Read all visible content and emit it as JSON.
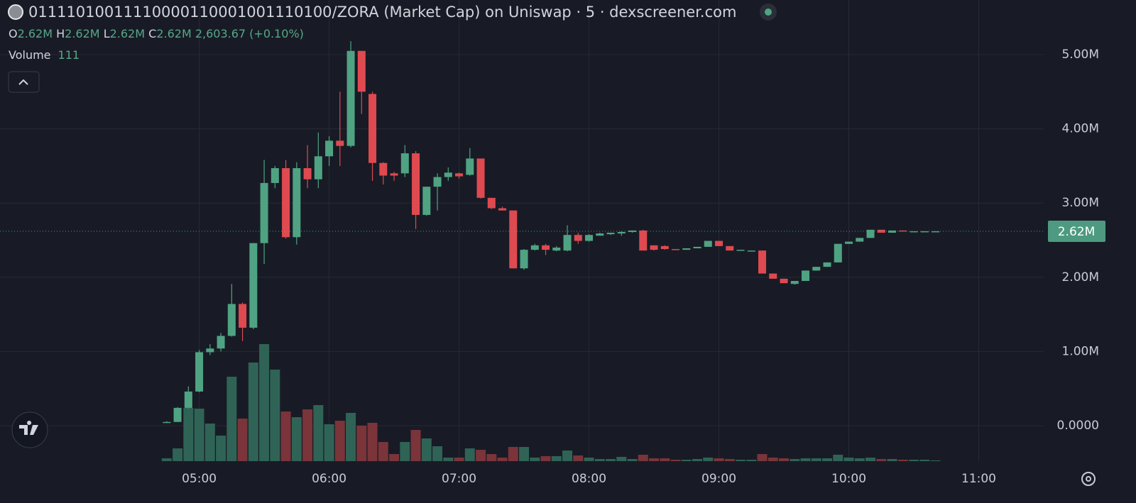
{
  "chart_data": {
    "type": "candlestick",
    "title": "01111010011110000110001001110100/ZORA (Market Cap) on Uniswap · 5 · dexscreener.com",
    "legend": {
      "open_key": "O",
      "open": "2.62M",
      "high_key": "H",
      "high": "2.62M",
      "low_key": "L",
      "low": "2.62M",
      "close_key": "C",
      "close": "2.62M",
      "change": "2,603.67 (+0.10%)"
    },
    "volume_label": "Volume",
    "x": [
      "04:45",
      "04:50",
      "04:55",
      "05:00",
      "05:05",
      "05:10",
      "05:15",
      "05:20",
      "05:25",
      "05:30",
      "05:35",
      "05:40",
      "05:45",
      "05:50",
      "05:55",
      "06:00",
      "06:05",
      "06:10",
      "06:15",
      "06:20",
      "06:25",
      "06:30",
      "06:35",
      "06:40",
      "06:45",
      "06:50",
      "06:55",
      "07:00",
      "07:05",
      "07:10",
      "07:15",
      "07:20",
      "07:25",
      "07:30",
      "07:35",
      "07:40",
      "07:45",
      "07:50",
      "07:55",
      "08:00",
      "08:05",
      "08:10",
      "08:15",
      "08:20",
      "08:25",
      "08:30",
      "08:35",
      "08:40",
      "08:45",
      "08:50",
      "08:55",
      "09:00",
      "09:05",
      "09:10",
      "09:15",
      "09:20",
      "09:25",
      "09:30",
      "09:35",
      "09:40",
      "09:45",
      "09:50",
      "09:55",
      "10:00",
      "10:05",
      "10:10",
      "10:15",
      "10:20",
      "10:25",
      "10:30",
      "10:35",
      "10:40"
    ],
    "open": [
      50000,
      50000,
      240000,
      460000,
      990000,
      1040000,
      1210000,
      1640000,
      1320000,
      2460000,
      3270000,
      3470000,
      2540000,
      3470000,
      3320000,
      3630000,
      3840000,
      3770000,
      5050000,
      4470000,
      3540000,
      3400000,
      3400000,
      3670000,
      2840000,
      3220000,
      3350000,
      3400000,
      3380000,
      3600000,
      3070000,
      2930000,
      2900000,
      2120000,
      2370000,
      2430000,
      2360000,
      2360000,
      2570000,
      2490000,
      2560000,
      2580000,
      2590000,
      2610000,
      2630000,
      2430000,
      2420000,
      2380000,
      2370000,
      2390000,
      2410000,
      2490000,
      2420000,
      2370000,
      2360000,
      2360000,
      2050000,
      1980000,
      1910000,
      1950000,
      2090000,
      2140000,
      2200000,
      2450000,
      2480000,
      2530000,
      2640000,
      2600000,
      2630000,
      2620000,
      2620000,
      2620000
    ],
    "high": [
      60000,
      250000,
      530000,
      1020000,
      1100000,
      1250000,
      1910000,
      1660000,
      2460000,
      3580000,
      3500000,
      3580000,
      3550000,
      3780000,
      3950000,
      3900000,
      4500000,
      5180000,
      5050000,
      4500000,
      3550000,
      3420000,
      3780000,
      3700000,
      3220000,
      3400000,
      3480000,
      3410000,
      3740000,
      3600000,
      3070000,
      2950000,
      2900000,
      2380000,
      2450000,
      2450000,
      2420000,
      2700000,
      2600000,
      2580000,
      2600000,
      2600000,
      2620000,
      2630000,
      2640000,
      2430000,
      2430000,
      2380000,
      2390000,
      2410000,
      2490000,
      2490000,
      2420000,
      2370000,
      2360000,
      2360000,
      2050000,
      1980000,
      1950000,
      2090000,
      2140000,
      2200000,
      2450000,
      2480000,
      2530000,
      2640000,
      2640000,
      2630000,
      2630000,
      2620000,
      2620000,
      2620000
    ],
    "low": [
      40000,
      50000,
      230000,
      450000,
      950000,
      1000000,
      1200000,
      1140000,
      1300000,
      2180000,
      3200000,
      2520000,
      2440000,
      3200000,
      3200000,
      3500000,
      3500000,
      3750000,
      4200000,
      3300000,
      3250000,
      3300000,
      3350000,
      2650000,
      2830000,
      2900000,
      3300000,
      3330000,
      3370000,
      3060000,
      2920000,
      2900000,
      2120000,
      2100000,
      2360000,
      2300000,
      2350000,
      2350000,
      2450000,
      2480000,
      2560000,
      2570000,
      2560000,
      2600000,
      2360000,
      2360000,
      2370000,
      2370000,
      2370000,
      2390000,
      2410000,
      2420000,
      2360000,
      2360000,
      2350000,
      2050000,
      1980000,
      1920000,
      1900000,
      1950000,
      2090000,
      2140000,
      2200000,
      2450000,
      2480000,
      2530000,
      2600000,
      2600000,
      2620000,
      2620000,
      2620000,
      2620000
    ],
    "close": [
      50000,
      240000,
      460000,
      990000,
      1040000,
      1210000,
      1640000,
      1320000,
      2460000,
      3270000,
      3470000,
      2540000,
      3470000,
      3320000,
      3630000,
      3840000,
      3770000,
      5050000,
      4500000,
      3540000,
      3370000,
      3370000,
      3670000,
      2840000,
      3220000,
      3350000,
      3410000,
      3360000,
      3600000,
      3070000,
      2930000,
      2900000,
      2120000,
      2370000,
      2430000,
      2370000,
      2400000,
      2570000,
      2490000,
      2570000,
      2590000,
      2600000,
      2610000,
      2630000,
      2360000,
      2370000,
      2380000,
      2370000,
      2390000,
      2410000,
      2490000,
      2420000,
      2360000,
      2370000,
      2360000,
      2050000,
      1980000,
      1920000,
      1950000,
      2090000,
      2140000,
      2200000,
      2450000,
      2480000,
      2530000,
      2640000,
      2600000,
      2630000,
      2620000,
      2620000,
      2620000,
      2620000
    ],
    "volume": [
      440,
      1980,
      8250,
      8140,
      5830,
      3960,
      13090,
      6600,
      15290,
      18150,
      14190,
      7700,
      6820,
      8030,
      8690,
      5720,
      6270,
      7480,
      5500,
      5940,
      2970,
      1100,
      2970,
      4840,
      3520,
      2310,
      550,
      550,
      1980,
      1760,
      1100,
      550,
      2200,
      2200,
      550,
      770,
      770,
      1650,
      880,
      550,
      330,
      330,
      660,
      330,
      990,
      440,
      440,
      220,
      220,
      330,
      550,
      440,
      330,
      220,
      220,
      1100,
      550,
      440,
      330,
      440,
      440,
      440,
      990,
      550,
      440,
      550,
      330,
      330,
      220,
      220,
      220,
      111
    ],
    "up_color": "#4fa383",
    "down_color": "#de4a50",
    "volume_up_color": "#2f6356",
    "volume_down_color": "#7a343a",
    "last_price": {
      "value": 2620000,
      "label": "2.62M"
    },
    "last_price_color": "#4d9a80",
    "xlim": [
      "03:28",
      "11:30"
    ],
    "xticks": [
      "05:00",
      "06:00",
      "07:00",
      "08:00",
      "09:00",
      "10:00",
      "11:00"
    ],
    "ylim": [
      -478000,
      5736000
    ],
    "yticks": [
      {
        "value": 0,
        "label": "0.0000"
      },
      {
        "value": 1000000,
        "label": "1.00M"
      },
      {
        "value": 2000000,
        "label": "2.00M"
      },
      {
        "value": 3000000,
        "label": "3.00M"
      },
      {
        "value": 4000000,
        "label": "4.00M"
      },
      {
        "value": 5000000,
        "label": "5.00M"
      }
    ],
    "grid": true
  }
}
